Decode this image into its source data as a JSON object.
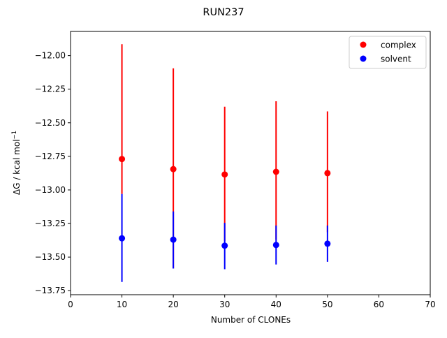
{
  "chart_data": {
    "type": "scatter",
    "title": "RUN237",
    "xlabel": "Number of CLONEs",
    "ylabel_main": "ΔG / kcal mol",
    "ylabel_sup": "−1",
    "xlim": [
      0,
      70
    ],
    "ylim": [
      -13.78,
      -11.82
    ],
    "xticks": [
      0,
      10,
      20,
      30,
      40,
      50,
      60,
      70
    ],
    "xtick_labels": [
      "0",
      "10",
      "20",
      "30",
      "40",
      "50",
      "60",
      "70"
    ],
    "yticks": [
      -12.0,
      -12.25,
      -12.5,
      -12.75,
      -13.0,
      -13.25,
      -13.5,
      -13.75
    ],
    "ytick_labels": [
      "−12.00",
      "−12.25",
      "−12.50",
      "−12.75",
      "−13.00",
      "−13.25",
      "−13.50",
      "−13.75"
    ],
    "grid": false,
    "legend_position": "top-right",
    "series": [
      {
        "name": "complex",
        "color": "#ff0000",
        "x": [
          10,
          20,
          30,
          40,
          50
        ],
        "y": [
          -12.77,
          -12.845,
          -12.885,
          -12.865,
          -12.875
        ],
        "yerr_low": [
          -13.03,
          -13.585,
          -13.38,
          -13.37,
          -13.315
        ],
        "yerr_high": [
          -11.915,
          -12.095,
          -12.38,
          -12.34,
          -12.415
        ]
      },
      {
        "name": "solvent",
        "color": "#0000ff",
        "x": [
          10,
          20,
          30,
          40,
          50
        ],
        "y": [
          -13.36,
          -13.37,
          -13.415,
          -13.41,
          -13.4
        ],
        "yerr_low": [
          -13.685,
          -13.585,
          -13.59,
          -13.555,
          -13.535
        ],
        "yerr_high": [
          -13.03,
          -13.16,
          -13.245,
          -13.265,
          -13.265
        ]
      }
    ]
  }
}
